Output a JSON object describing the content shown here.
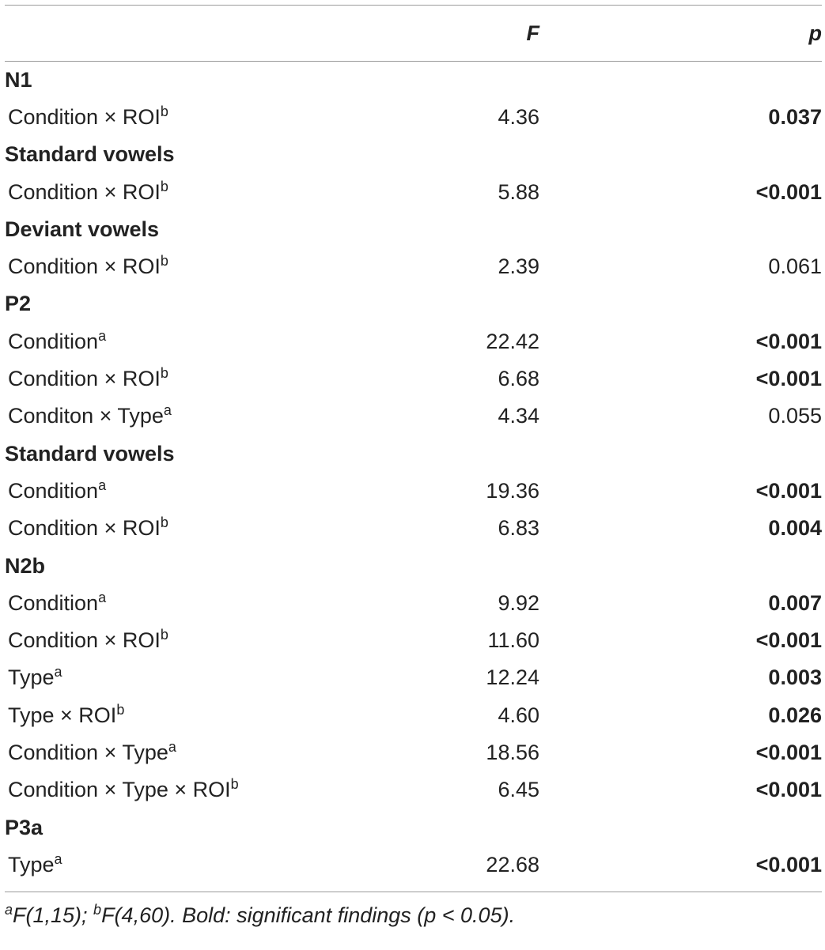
{
  "table": {
    "headers": {
      "label": "",
      "f": "F",
      "p": "p"
    },
    "sections": [
      {
        "title": "N1",
        "rows": [
          {
            "label": "Condition × ROI",
            "sup": "b",
            "f": "4.36",
            "p": "0.037",
            "sig": true
          }
        ]
      },
      {
        "title": "Standard vowels",
        "rows": [
          {
            "label": "Condition × ROI",
            "sup": "b",
            "f": "5.88",
            "p": "<0.001",
            "sig": true
          }
        ]
      },
      {
        "title": "Deviant vowels",
        "rows": [
          {
            "label": "Condition × ROI",
            "sup": "b",
            "f": "2.39",
            "p": "0.061",
            "sig": false
          }
        ]
      },
      {
        "title": "P2",
        "rows": [
          {
            "label": "Condition",
            "sup": "a",
            "f": "22.42",
            "p": "<0.001",
            "sig": true
          },
          {
            "label": "Condition × ROI",
            "sup": "b",
            "f": "6.68",
            "p": "<0.001",
            "sig": true
          },
          {
            "label": "Conditon × Type",
            "sup": "a",
            "f": "4.34",
            "p": "0.055",
            "sig": false
          }
        ]
      },
      {
        "title": "Standard vowels",
        "rows": [
          {
            "label": "Condition",
            "sup": "a",
            "f": "19.36",
            "p": "<0.001",
            "sig": true
          },
          {
            "label": "Condition × ROI",
            "sup": "b",
            "f": "6.83",
            "p": "0.004",
            "sig": true
          }
        ]
      },
      {
        "title": "N2b",
        "rows": [
          {
            "label": "Condition",
            "sup": "a",
            "f": "9.92",
            "p": "0.007",
            "sig": true
          },
          {
            "label": "Condition × ROI",
            "sup": "b",
            "f": "11.60",
            "p": "<0.001",
            "sig": true
          },
          {
            "label": "Type",
            "sup": "a",
            "f": "12.24",
            "p": "0.003",
            "sig": true
          },
          {
            "label": "Type × ROI",
            "sup": "b",
            "f": "4.60",
            "p": "0.026",
            "sig": true
          },
          {
            "label": "Condition × Type",
            "sup": "a",
            "f": "18.56",
            "p": "<0.001",
            "sig": true
          },
          {
            "label": "Condition × Type × ROI",
            "sup": "b",
            "f": "6.45",
            "p": "<0.001",
            "sig": true
          }
        ]
      },
      {
        "title": "P3a",
        "rows": [
          {
            "label": "Type",
            "sup": "a",
            "f": "22.68",
            "p": "<0.001",
            "sig": true
          }
        ]
      }
    ]
  },
  "footnote": {
    "a_sup": "a",
    "a_text": "F(1,15); ",
    "b_sup": "b",
    "b_text": "F(4,60). Bold: significant findings (p < 0.05)."
  }
}
